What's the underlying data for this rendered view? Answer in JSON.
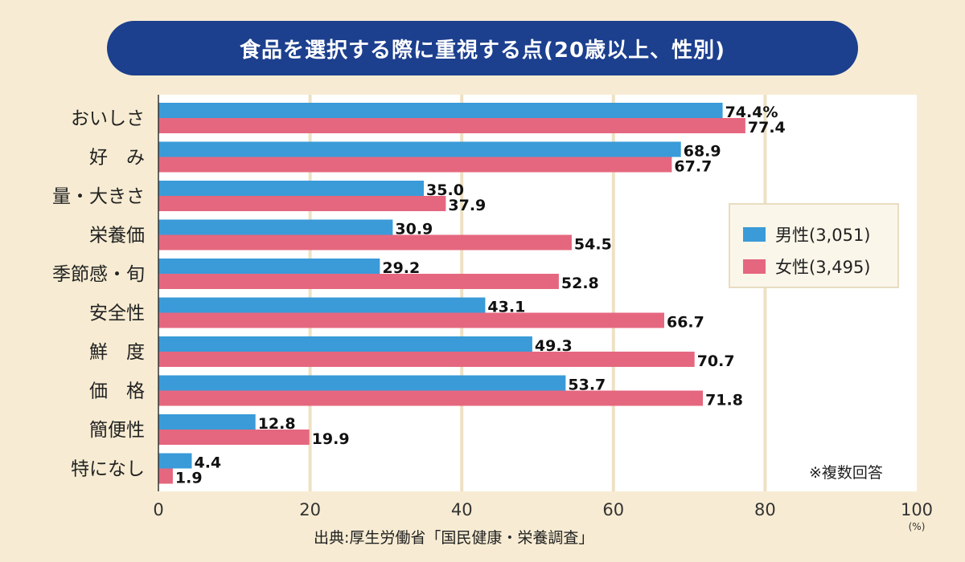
{
  "title": "食品を選択する際に重視する点(20歳以上、性別)",
  "colors": {
    "male": "#3a9bd8",
    "female": "#e5677f",
    "title_bg": "#1c3f8e",
    "plot_bg": "#ffffff",
    "grid": "#eee1c4"
  },
  "legend": {
    "male": "男性(3,051)",
    "female": "女性(3,495)"
  },
  "note": "※複数回答",
  "source": "出典:厚生労働省「国民健康・栄養調査」",
  "chart_data": {
    "type": "bar",
    "orientation": "horizontal",
    "title": "食品を選択する際に重視する点(20歳以上、性別)",
    "categories": [
      "おいしさ",
      "好　み",
      "量・大きさ",
      "栄養価",
      "季節感・旬",
      "安全性",
      "鮮　度",
      "価　格",
      "簡便性",
      "特になし"
    ],
    "series": [
      {
        "name": "男性(3,051)",
        "key": "male",
        "values": [
          74.4,
          68.9,
          35.0,
          30.9,
          29.2,
          43.1,
          49.3,
          53.7,
          12.8,
          4.4
        ],
        "labels": [
          "74.4%",
          "68.9",
          "35.0",
          "30.9",
          "29.2",
          "43.1",
          "49.3",
          "53.7",
          "12.8",
          "4.4"
        ]
      },
      {
        "name": "女性(3,495)",
        "key": "female",
        "values": [
          77.4,
          67.7,
          37.9,
          54.5,
          52.8,
          66.7,
          70.7,
          71.8,
          19.9,
          1.9
        ],
        "labels": [
          "77.4",
          "67.7",
          "37.9",
          "54.5",
          "52.8",
          "66.7",
          "70.7",
          "71.8",
          "19.9",
          "1.9"
        ]
      }
    ],
    "xlim": [
      0,
      100
    ],
    "xticks": [
      "0",
      "20",
      "40",
      "60",
      "80",
      "100"
    ],
    "xunit": "(%)",
    "grid": true,
    "legend_position": "right"
  }
}
